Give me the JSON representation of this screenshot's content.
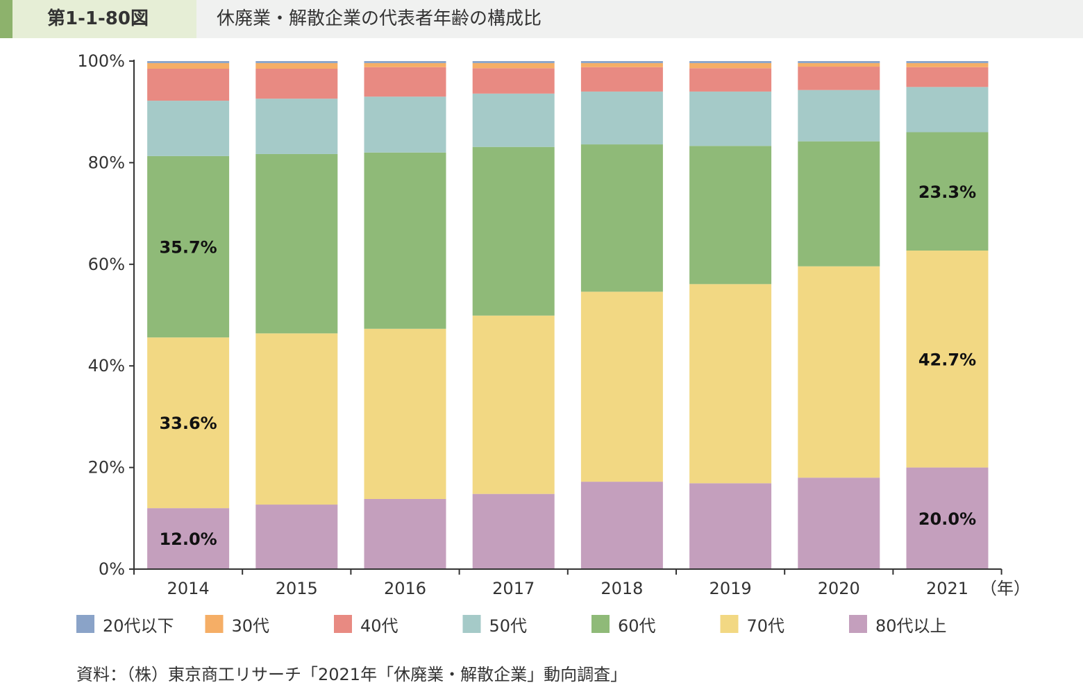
{
  "header": {
    "figure_number": "第1-1-80図",
    "title": "休廃業・解散企業の代表者年齢の構成比"
  },
  "chart_data": {
    "type": "bar",
    "stacked": true,
    "percent": true,
    "categories": [
      "2014",
      "2015",
      "2016",
      "2017",
      "2018",
      "2019",
      "2020",
      "2021"
    ],
    "x_unit_label": "（年）",
    "ylim": [
      0,
      100
    ],
    "yticks": [
      "0%",
      "20%",
      "40%",
      "60%",
      "80%",
      "100%"
    ],
    "legend_position": "bottom",
    "grid": false,
    "series": [
      {
        "name": "80代以上",
        "color": "#c49fbd",
        "values": [
          12.0,
          12.7,
          13.8,
          14.8,
          17.2,
          16.9,
          18.0,
          20.0
        ]
      },
      {
        "name": "70代",
        "color": "#f2d883",
        "values": [
          33.6,
          33.7,
          33.5,
          35.1,
          37.4,
          39.2,
          41.6,
          42.7
        ]
      },
      {
        "name": "60代",
        "color": "#8fba78",
        "values": [
          35.7,
          35.3,
          34.7,
          33.2,
          29.0,
          27.2,
          24.6,
          23.3
        ]
      },
      {
        "name": "50代",
        "color": "#a5cac8",
        "values": [
          10.9,
          10.9,
          11.0,
          10.5,
          10.4,
          10.7,
          10.1,
          8.9
        ]
      },
      {
        "name": "40代",
        "color": "#e88a82",
        "values": [
          6.3,
          5.9,
          5.8,
          5.0,
          4.8,
          4.6,
          4.6,
          3.9
        ]
      },
      {
        "name": "30代",
        "color": "#f5ae66",
        "values": [
          1.1,
          1.1,
          0.8,
          1.0,
          0.8,
          1.0,
          0.7,
          0.8
        ]
      },
      {
        "name": "20代以下",
        "color": "#8aa3c8",
        "values": [
          0.4,
          0.4,
          0.4,
          0.4,
          0.4,
          0.4,
          0.4,
          0.4
        ]
      }
    ],
    "legend_order": [
      "20代以下",
      "30代",
      "40代",
      "50代",
      "60代",
      "70代",
      "80代以上"
    ],
    "data_labels": [
      {
        "category": "2014",
        "series": "80代以上",
        "text": "12.0%"
      },
      {
        "category": "2014",
        "series": "70代",
        "text": "33.6%"
      },
      {
        "category": "2014",
        "series": "60代",
        "text": "35.7%"
      },
      {
        "category": "2021",
        "series": "80代以上",
        "text": "20.0%"
      },
      {
        "category": "2021",
        "series": "70代",
        "text": "42.7%"
      },
      {
        "category": "2021",
        "series": "60代",
        "text": "23.3%"
      }
    ]
  },
  "source": "資料：（株）東京商工リサーチ「2021年「休廃業・解散企業」動向調査」"
}
